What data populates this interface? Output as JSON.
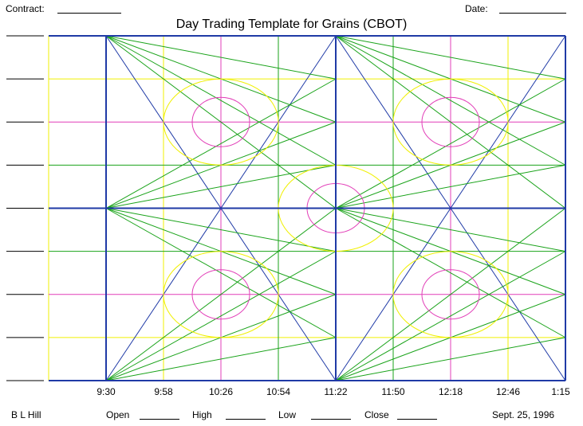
{
  "header": {
    "contract_label": "Contract:",
    "date_label": "Date:"
  },
  "title": "Day Trading Template for Grains (CBOT)",
  "time_ticks": [
    "9:30",
    "9:58",
    "10:26",
    "10:54",
    "11:22",
    "11:50",
    "12:18",
    "12:46",
    "1:15"
  ],
  "footer": {
    "author": "B L Hill",
    "open_label": "Open",
    "high_label": "High",
    "low_label": "Low",
    "close_label": "Close",
    "date": "Sept. 25, 1996"
  },
  "colors": {
    "frame": "#1f3aa6",
    "green": "#1aa31a",
    "yellow": "#f0f000",
    "magenta": "#e23fb8",
    "diag": "#1f3aa6"
  }
}
